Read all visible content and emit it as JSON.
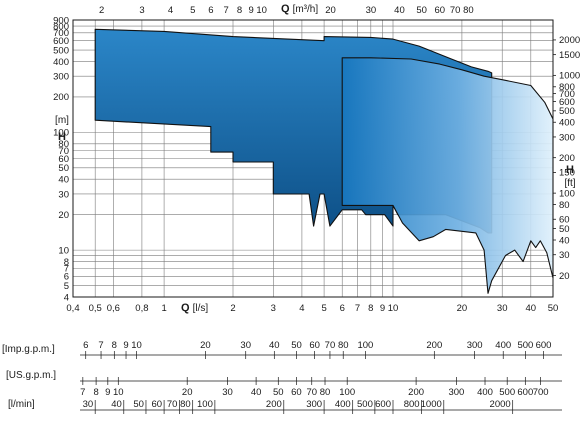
{
  "chart_data": {
    "type": "area",
    "x_scale": "log",
    "y_scale": "log",
    "x_axis_bottom": {
      "unit_label": "Q [l/s]",
      "letter": "Q",
      "unit": "[l/s]",
      "range": [
        0.4,
        50
      ],
      "ticks": [
        0.4,
        0.5,
        0.6,
        0.8,
        1,
        2,
        3,
        4,
        5,
        6,
        7,
        8,
        9,
        10,
        20,
        30,
        40,
        50
      ],
      "tick_labels": [
        "0,4",
        "0,5",
        "0,6",
        "0,8",
        "1",
        "2",
        "3",
        "4",
        "5",
        "6",
        "7",
        "8",
        "9",
        "10",
        "20",
        "30",
        "40",
        "50"
      ]
    },
    "x_axis_top": {
      "unit_label": "Q [m³/h]",
      "letter": "Q",
      "unit": "[m³/h]",
      "ticks": [
        2,
        3,
        4,
        5,
        6,
        7,
        8,
        9,
        10,
        20,
        30,
        40,
        50,
        60,
        70,
        80
      ],
      "tick_labels": [
        "2",
        "3",
        "4",
        "5",
        "6",
        "7",
        "8",
        "9",
        "10",
        "20",
        "30",
        "40",
        "50",
        "60",
        "70",
        "80"
      ]
    },
    "y_axis_left": {
      "letter": "H",
      "unit": "[m]",
      "range": [
        4,
        900
      ],
      "ticks": [
        4,
        5,
        6,
        7,
        8,
        9,
        10,
        20,
        30,
        40,
        50,
        60,
        70,
        80,
        100,
        200,
        300,
        400,
        500,
        600,
        700,
        800,
        900
      ],
      "tick_labels": [
        "4",
        "5",
        "6",
        "7",
        "8",
        "",
        "10",
        "20",
        "30",
        "40",
        "50",
        "60",
        "70",
        "80",
        "100",
        "200",
        "300",
        "400",
        "500",
        "600",
        "700",
        "800",
        "900"
      ]
    },
    "y_axis_right": {
      "letter": "H",
      "unit": "[ft]",
      "ticks": [
        20,
        30,
        40,
        50,
        60,
        80,
        100,
        150,
        200,
        300,
        400,
        500,
        600,
        700,
        800,
        1000,
        1500,
        2000
      ],
      "tick_labels": [
        "20",
        "30",
        "40",
        "50",
        "60",
        "80",
        "100",
        "150",
        "200",
        "300",
        "400",
        "500",
        "600",
        "700",
        "800",
        "1000",
        "1500",
        "2000"
      ]
    },
    "grid": true,
    "series": [
      {
        "color": "#1f6fb6",
        "outline": [
          [
            0.5,
            750
          ],
          [
            1,
            720
          ],
          [
            2,
            650
          ],
          [
            5,
            600
          ],
          [
            5,
            650
          ],
          [
            8,
            640
          ],
          [
            10,
            620
          ],
          [
            13,
            540
          ],
          [
            18,
            420
          ],
          [
            22,
            360
          ],
          [
            26,
            330
          ],
          [
            27,
            320
          ],
          [
            27,
            14
          ],
          [
            26,
            14
          ],
          [
            24,
            15.5
          ],
          [
            17,
            20
          ],
          [
            10.5,
            20
          ],
          [
            10,
            24
          ],
          [
            10,
            16
          ],
          [
            9.2,
            20
          ],
          [
            8.2,
            20
          ],
          [
            7.6,
            20
          ],
          [
            7.3,
            22
          ],
          [
            6,
            22
          ],
          [
            5.3,
            16
          ],
          [
            5,
            30
          ],
          [
            4.8,
            30
          ],
          [
            4.5,
            16
          ],
          [
            4.3,
            30
          ],
          [
            3,
            30
          ],
          [
            3,
            56
          ],
          [
            2,
            56
          ],
          [
            2,
            68
          ],
          [
            1.6,
            68
          ],
          [
            1.6,
            112
          ],
          [
            0.5,
            127
          ]
        ]
      },
      {
        "color": "#6fb0e2",
        "outline": [
          [
            6,
            430
          ],
          [
            8,
            430
          ],
          [
            12,
            420
          ],
          [
            16,
            380
          ],
          [
            20,
            340
          ],
          [
            25,
            300
          ],
          [
            30,
            280
          ],
          [
            40,
            250
          ],
          [
            46,
            180
          ],
          [
            50,
            130
          ],
          [
            50,
            5.8
          ],
          [
            47,
            9.5
          ],
          [
            44,
            12
          ],
          [
            42,
            10.5
          ],
          [
            40,
            12
          ],
          [
            37,
            8
          ],
          [
            34,
            10
          ],
          [
            31,
            9
          ],
          [
            27,
            5.5
          ],
          [
            26,
            4.3
          ],
          [
            25,
            10
          ],
          [
            23,
            14
          ],
          [
            17,
            15
          ],
          [
            15,
            13
          ],
          [
            13,
            12
          ],
          [
            11,
            17
          ],
          [
            10,
            24
          ],
          [
            6,
            24
          ]
        ]
      }
    ]
  },
  "conversion_scales": [
    {
      "label": "[Imp.g.p.m.]",
      "ticks": [
        "6",
        "7",
        "8",
        "9",
        "10",
        "20",
        "30",
        "40",
        "50",
        "60",
        "70",
        "80",
        "100",
        "200",
        "300",
        "400",
        "500",
        "600"
      ]
    },
    {
      "label": "[US.g.p.m.]",
      "ticks": [
        "7",
        "8",
        "9",
        "10",
        "20",
        "30",
        "40",
        "50",
        "60",
        "70",
        "80",
        "100",
        "200",
        "300",
        "400",
        "500",
        "600",
        "700"
      ]
    },
    {
      "label": "[l/min]",
      "ticks": [
        "30",
        "40",
        "50",
        "60",
        "70",
        "80",
        "100",
        "200",
        "300",
        "400",
        "500",
        "600",
        "800",
        "1000",
        "2000"
      ]
    }
  ],
  "colors": {
    "grid": "#7a7a7a",
    "frame": "#1a1a1a",
    "series_dark_top": "#2b86c8",
    "series_dark_bottom": "#0d4f86",
    "series_light_left": "#1777bf",
    "series_light_right": "#dff0fb"
  }
}
